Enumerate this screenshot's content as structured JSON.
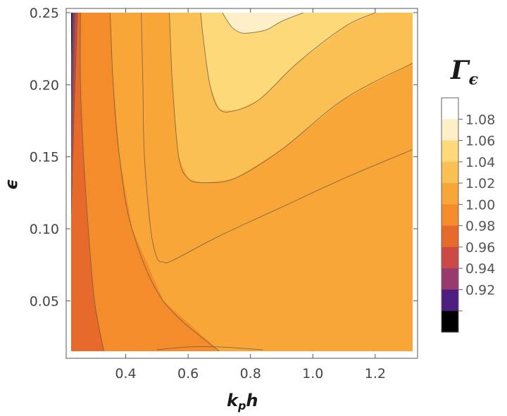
{
  "chart_data": {
    "type": "contour",
    "xlabel": "k",
    "xlabel_sub": "p",
    "xlabel_tail": "h",
    "ylabel": "ϵ",
    "x_range": [
      0.225,
      1.32
    ],
    "y_range": [
      0.015,
      0.25
    ],
    "x_ticks": [
      {
        "value": 0.4,
        "label": "0.4"
      },
      {
        "value": 0.6,
        "label": "0.6"
      },
      {
        "value": 0.8,
        "label": "0.8"
      },
      {
        "value": 1.0,
        "label": "1.0"
      },
      {
        "value": 1.2,
        "label": "1.2"
      }
    ],
    "y_ticks": [
      {
        "value": 0.05,
        "label": "0.05"
      },
      {
        "value": 0.1,
        "label": "0.10"
      },
      {
        "value": 0.15,
        "label": "0.15"
      },
      {
        "value": 0.2,
        "label": "0.20"
      },
      {
        "value": 0.25,
        "label": "0.25"
      }
    ],
    "legend": {
      "title": "Γ",
      "title_sub": "ϵ",
      "position": "right",
      "levels": [
        {
          "value": 1.08,
          "label": "1.08",
          "color": "#ffffff"
        },
        {
          "value": 1.06,
          "label": "1.06",
          "color": "#fdf0c8"
        },
        {
          "value": 1.04,
          "label": "1.04",
          "color": "#fdd97a"
        },
        {
          "value": 1.02,
          "label": "1.02",
          "color": "#fbc053"
        },
        {
          "value": 1.0,
          "label": "1.00",
          "color": "#f9a638"
        },
        {
          "value": 0.98,
          "label": "0.98",
          "color": "#f58c2c"
        },
        {
          "value": 0.96,
          "label": "0.96",
          "color": "#e86a2a"
        },
        {
          "value": 0.94,
          "label": "0.94",
          "color": "#cc4a46"
        },
        {
          "value": 0.92,
          "label": "0.92",
          "color": "#983a6e"
        },
        {
          "value": 0.9,
          "label": "",
          "color": "#4e1d81"
        },
        {
          "value": 0.88,
          "label": "",
          "color": "#000000"
        }
      ]
    },
    "regions": [
      {
        "name": "band-0.96-0.98",
        "level": "0.96",
        "color": "#e86a2a",
        "points": [
          [
            0.225,
            0.015
          ],
          [
            0.33,
            0.015
          ],
          [
            0.3,
            0.05
          ],
          [
            0.28,
            0.1
          ],
          [
            0.265,
            0.15
          ],
          [
            0.255,
            0.2
          ],
          [
            0.255,
            0.25
          ],
          [
            0.225,
            0.25
          ]
        ]
      },
      {
        "name": "band-0.98-1.00",
        "level": "0.98",
        "color": "#f58c2c",
        "points": [
          [
            0.33,
            0.015
          ],
          [
            0.7,
            0.015
          ],
          [
            0.52,
            0.05
          ],
          [
            0.42,
            0.1
          ],
          [
            0.38,
            0.15
          ],
          [
            0.36,
            0.2
          ],
          [
            0.35,
            0.25
          ],
          [
            0.255,
            0.25
          ],
          [
            0.255,
            0.2
          ],
          [
            0.265,
            0.15
          ],
          [
            0.28,
            0.1
          ],
          [
            0.3,
            0.05
          ]
        ]
      },
      {
        "name": "band-0.94-0.96",
        "level": "0.94",
        "color": "#cc4a46",
        "points": [
          [
            0.225,
            0.11
          ],
          [
            0.233,
            0.17
          ],
          [
            0.245,
            0.25
          ],
          [
            0.225,
            0.25
          ]
        ]
      },
      {
        "name": "band-0.92-0.94",
        "level": "0.92",
        "color": "#983a6e",
        "points": [
          [
            0.225,
            0.14
          ],
          [
            0.232,
            0.2
          ],
          [
            0.238,
            0.25
          ],
          [
            0.225,
            0.25
          ]
        ]
      },
      {
        "name": "band-0.90-0.92",
        "level": "0.90",
        "color": "#4e1d81",
        "points": [
          [
            0.225,
            0.175
          ],
          [
            0.229,
            0.22
          ],
          [
            0.232,
            0.25
          ],
          [
            0.225,
            0.25
          ]
        ]
      },
      {
        "name": "band-below-0.90",
        "level": "0.88",
        "color": "#000000",
        "points": [
          [
            0.225,
            0.205
          ],
          [
            0.227,
            0.23
          ],
          [
            0.228,
            0.25
          ],
          [
            0.225,
            0.25
          ]
        ]
      },
      {
        "name": "band-1.00-1.02",
        "level": "1.00",
        "color": "#f9a638",
        "points": [
          [
            1.32,
            0.155
          ],
          [
            1.1,
            0.135
          ],
          [
            0.9,
            0.115
          ],
          [
            0.7,
            0.095
          ],
          [
            0.55,
            0.078
          ],
          [
            0.52,
            0.077
          ],
          [
            0.5,
            0.08
          ],
          [
            0.48,
            0.1
          ],
          [
            0.46,
            0.15
          ],
          [
            0.455,
            0.2
          ],
          [
            0.45,
            0.25
          ],
          [
            1.32,
            0.25
          ]
        ]
      },
      {
        "name": "band-1.02-1.04",
        "level": "1.02",
        "color": "#fbc053",
        "points": [
          [
            1.32,
            0.215
          ],
          [
            1.1,
            0.19
          ],
          [
            0.9,
            0.155
          ],
          [
            0.75,
            0.135
          ],
          [
            0.65,
            0.132
          ],
          [
            0.6,
            0.135
          ],
          [
            0.57,
            0.15
          ],
          [
            0.55,
            0.2
          ],
          [
            0.54,
            0.25
          ],
          [
            1.32,
            0.25
          ]
        ]
      },
      {
        "name": "band-1.04-1.06",
        "level": "1.04",
        "color": "#fdd97a",
        "points": [
          [
            1.2,
            0.25
          ],
          [
            1.1,
            0.24
          ],
          [
            0.95,
            0.215
          ],
          [
            0.83,
            0.19
          ],
          [
            0.75,
            0.182
          ],
          [
            0.7,
            0.183
          ],
          [
            0.67,
            0.2
          ],
          [
            0.65,
            0.23
          ],
          [
            0.64,
            0.25
          ]
        ]
      },
      {
        "name": "band-1.06-1.08",
        "level": "1.06",
        "color": "#fdf0c8",
        "points": [
          [
            0.97,
            0.25
          ],
          [
            0.9,
            0.244
          ],
          [
            0.85,
            0.238
          ],
          [
            0.8,
            0.236
          ],
          [
            0.77,
            0.236
          ],
          [
            0.74,
            0.24
          ],
          [
            0.71,
            0.25
          ]
        ]
      }
    ],
    "contours": [
      {
        "level": "0.92",
        "points": [
          [
            0.225,
            0.205
          ],
          [
            0.227,
            0.23
          ],
          [
            0.228,
            0.25
          ]
        ]
      },
      {
        "level": "0.93",
        "points": [
          [
            0.225,
            0.175
          ],
          [
            0.229,
            0.22
          ],
          [
            0.232,
            0.25
          ]
        ]
      },
      {
        "level": "0.94",
        "points": [
          [
            0.225,
            0.14
          ],
          [
            0.232,
            0.2
          ],
          [
            0.238,
            0.25
          ]
        ]
      },
      {
        "level": "0.95",
        "points": [
          [
            0.225,
            0.11
          ],
          [
            0.233,
            0.17
          ],
          [
            0.245,
            0.25
          ]
        ]
      },
      {
        "level": "0.96",
        "points": [
          [
            0.33,
            0.015
          ],
          [
            0.3,
            0.05
          ],
          [
            0.28,
            0.1
          ],
          [
            0.265,
            0.15
          ],
          [
            0.255,
            0.2
          ],
          [
            0.255,
            0.25
          ]
        ]
      },
      {
        "level": "0.98",
        "points": [
          [
            0.7,
            0.015
          ],
          [
            0.52,
            0.05
          ],
          [
            0.42,
            0.1
          ],
          [
            0.38,
            0.15
          ],
          [
            0.36,
            0.2
          ],
          [
            0.35,
            0.25
          ]
        ]
      },
      {
        "level": "1.00",
        "points": [
          [
            1.32,
            0.155
          ],
          [
            1.1,
            0.135
          ],
          [
            0.9,
            0.115
          ],
          [
            0.7,
            0.095
          ],
          [
            0.55,
            0.078
          ],
          [
            0.52,
            0.077
          ],
          [
            0.5,
            0.08
          ],
          [
            0.48,
            0.1
          ],
          [
            0.46,
            0.15
          ],
          [
            0.455,
            0.2
          ],
          [
            0.45,
            0.25
          ]
        ]
      },
      {
        "level": "1.00b",
        "points": [
          [
            0.5,
            0.016
          ],
          [
            0.6,
            0.018
          ],
          [
            0.7,
            0.018
          ],
          [
            0.84,
            0.016
          ]
        ]
      },
      {
        "level": "1.02",
        "points": [
          [
            1.32,
            0.215
          ],
          [
            1.1,
            0.19
          ],
          [
            0.9,
            0.155
          ],
          [
            0.75,
            0.135
          ],
          [
            0.65,
            0.132
          ],
          [
            0.6,
            0.135
          ],
          [
            0.57,
            0.15
          ],
          [
            0.55,
            0.2
          ],
          [
            0.54,
            0.25
          ]
        ]
      },
      {
        "level": "1.04",
        "points": [
          [
            1.2,
            0.25
          ],
          [
            1.1,
            0.24
          ],
          [
            0.95,
            0.215
          ],
          [
            0.83,
            0.19
          ],
          [
            0.75,
            0.182
          ],
          [
            0.7,
            0.183
          ],
          [
            0.67,
            0.2
          ],
          [
            0.65,
            0.23
          ],
          [
            0.64,
            0.25
          ]
        ]
      },
      {
        "level": "1.06",
        "points": [
          [
            0.97,
            0.25
          ],
          [
            0.9,
            0.244
          ],
          [
            0.85,
            0.238
          ],
          [
            0.8,
            0.236
          ],
          [
            0.77,
            0.236
          ],
          [
            0.74,
            0.24
          ],
          [
            0.71,
            0.25
          ]
        ]
      }
    ],
    "base_color": "#f9a638"
  }
}
